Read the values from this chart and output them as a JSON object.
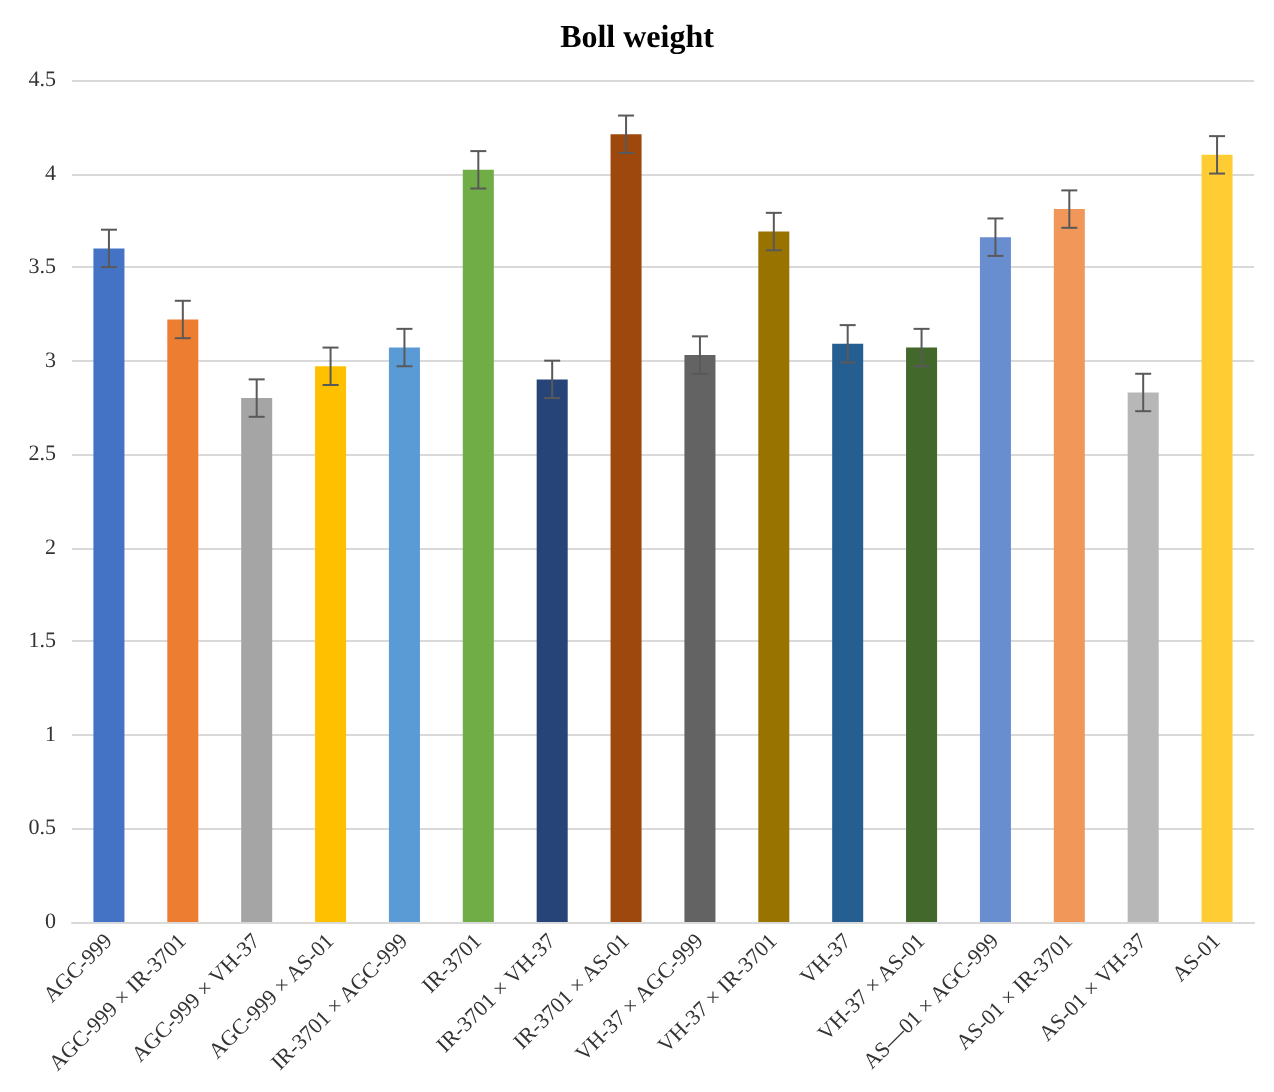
{
  "chart_data": {
    "type": "bar",
    "title": "Boll weight",
    "categories": [
      "AGC-999",
      "AGC-999 × IR-3701",
      "AGC-999 × VH-37",
      "AGC-999 × AS-01",
      "IR-3701 × AGC-999",
      "IR-3701",
      "IR-3701 × VH-37",
      "IR-3701 × AS-01",
      "VH-37 × AGC-999",
      "VH-37 × IR-3701",
      "VH-37",
      "VH-37 × AS-01",
      "AS—01 × AGC-999",
      "AS-01 × IR-3701",
      "AS-01 × VH-37",
      "AS-01"
    ],
    "values": [
      3.6,
      3.22,
      2.8,
      2.97,
      3.07,
      4.02,
      2.9,
      4.21,
      3.03,
      3.69,
      3.09,
      3.07,
      3.66,
      3.81,
      2.83,
      4.1
    ],
    "errors": [
      0.1,
      0.1,
      0.1,
      0.1,
      0.1,
      0.1,
      0.1,
      0.1,
      0.1,
      0.1,
      0.1,
      0.1,
      0.1,
      0.1,
      0.1,
      0.1
    ],
    "colors": [
      "#4472c4",
      "#ed7d31",
      "#a5a5a5",
      "#ffc000",
      "#5b9bd5",
      "#70ad47",
      "#264478",
      "#9e480e",
      "#636363",
      "#997300",
      "#255e91",
      "#43682b",
      "#698ed0",
      "#f1975a",
      "#b7b7b7",
      "#ffcd33"
    ],
    "ylim": [
      0,
      4.5
    ],
    "yticks": [
      0,
      0.5,
      1,
      1.5,
      2,
      2.5,
      3,
      3.5,
      4,
      4.5
    ],
    "grid": "y"
  }
}
